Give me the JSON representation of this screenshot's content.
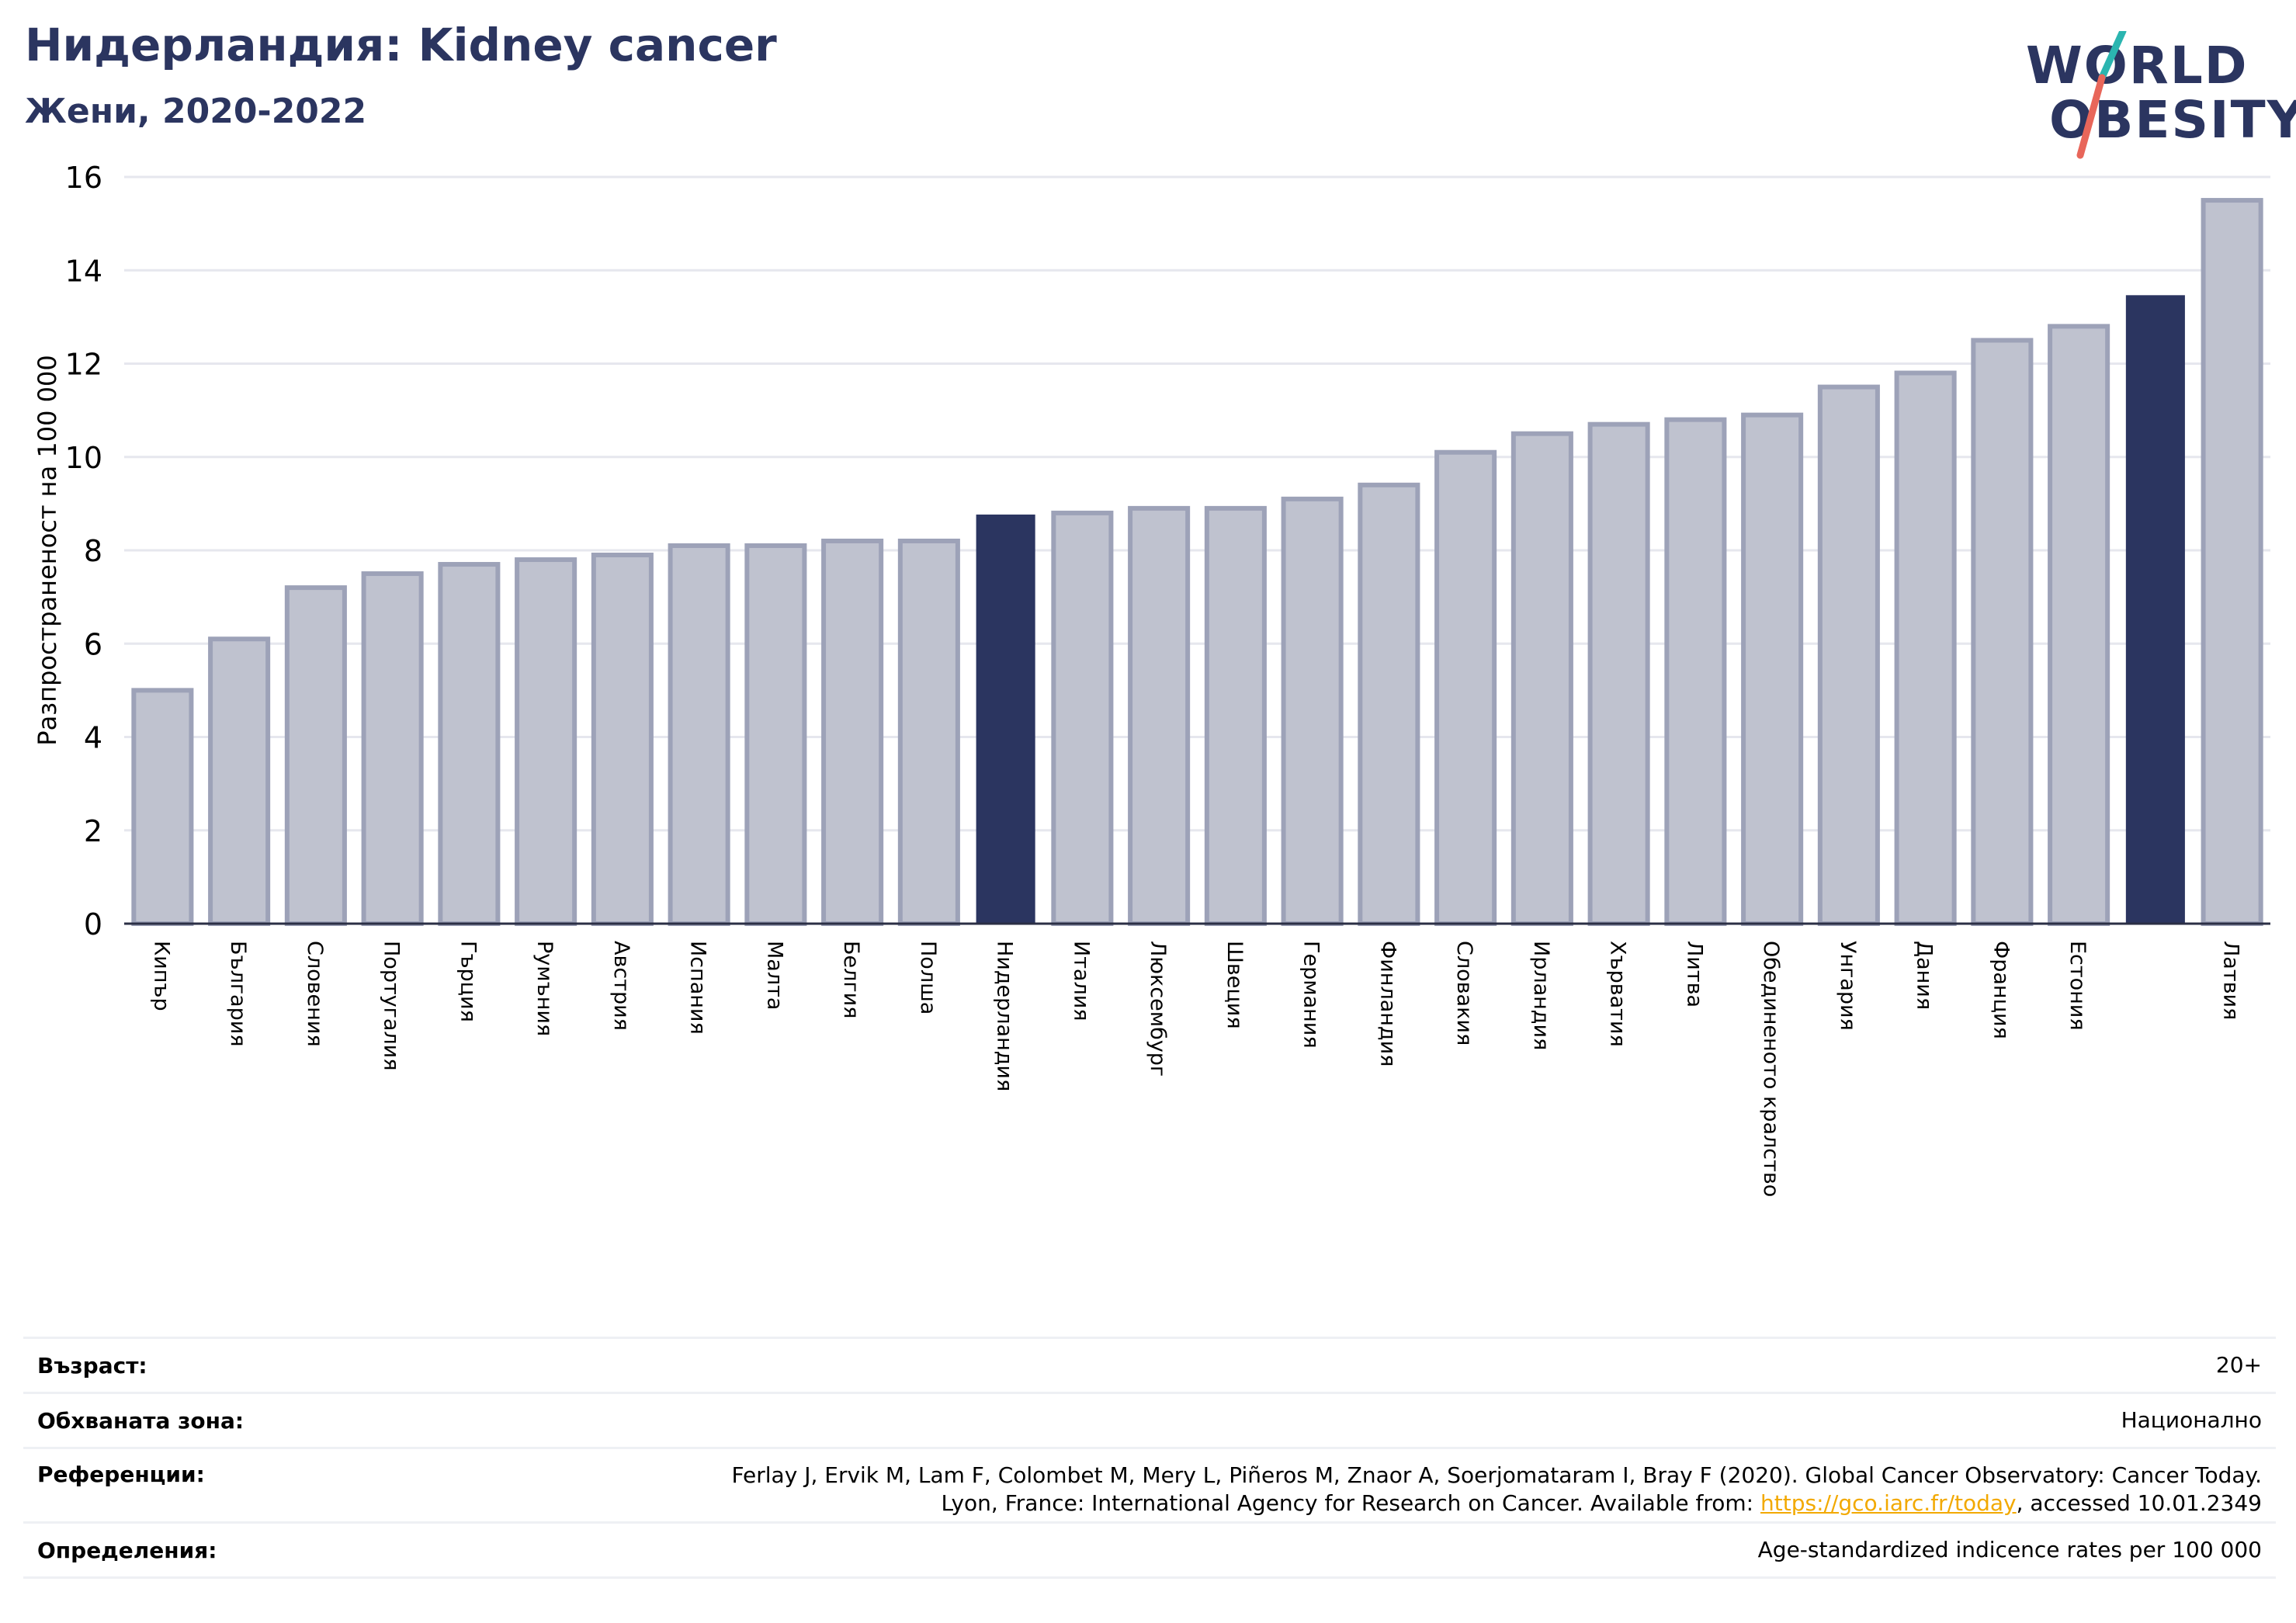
{
  "header": {
    "title": "Нидерландия: Kidney cancer",
    "subtitle": "Жени, 2020-2022"
  },
  "logo": {
    "line1": "WORLD",
    "line2": "OBESITY",
    "text_color": "#2b3560",
    "slash_color_top": "#2bb5b0",
    "slash_color_bottom": "#e8665a"
  },
  "chart_data": {
    "type": "bar",
    "ylabel": "Разпространеност  на 100 000",
    "ylim": [
      0,
      16
    ],
    "yticks": [
      0,
      2,
      4,
      6,
      8,
      10,
      12,
      14,
      16
    ],
    "grid": true,
    "bar_color": "#bfc2cf",
    "bar_border_color": "#9da2b8",
    "highlight_color": "#2b3560",
    "categories": [
      "Кипър",
      "България",
      "Словения",
      "Португалия",
      "Гърция",
      "Румъния",
      "Австрия",
      "Испания",
      "Малта",
      "Белгия",
      "Полша",
      "Нидерландия",
      "Италия",
      "Люксембург",
      "Швеция",
      "Германия",
      "Финландия",
      "Словакия",
      "Ирландия",
      "Хърватия",
      "Литва",
      "Обединеното кралство",
      "Унгария",
      "Дания",
      "Франция",
      "Естония",
      "",
      "Латвия"
    ],
    "values": [
      5.0,
      6.1,
      7.2,
      7.5,
      7.7,
      7.8,
      7.9,
      8.1,
      8.1,
      8.2,
      8.2,
      8.75,
      8.8,
      8.9,
      8.9,
      9.1,
      9.4,
      10.1,
      10.5,
      10.7,
      10.8,
      10.9,
      11.5,
      11.8,
      12.5,
      12.8,
      13.45,
      15.5
    ],
    "highlighted": [
      false,
      false,
      false,
      false,
      false,
      false,
      false,
      false,
      false,
      false,
      false,
      true,
      false,
      false,
      false,
      false,
      false,
      false,
      false,
      false,
      false,
      false,
      false,
      false,
      false,
      false,
      true,
      false
    ]
  },
  "info": {
    "age_label": "Възраст:",
    "age_value": "20+",
    "area_label": "Обхваната зона:",
    "area_value": "Национално",
    "refs_label": "Референции:",
    "refs_line1": "Ferlay J, Ervik M, Lam F, Colombet M, Mery L, Piñeros M, Znaor A, Soerjomataram I, Bray F (2020). Global Cancer Observatory: Cancer Today.",
    "refs_line2_pre": "Lyon, France: International Agency for Research on Cancer. Available from: ",
    "refs_link": "https://gco.iarc.fr/today",
    "refs_line2_post": ", accessed 10.01.2349",
    "defs_label": "Определения:",
    "defs_value": "Age-standardized indicence rates per 100 000"
  }
}
